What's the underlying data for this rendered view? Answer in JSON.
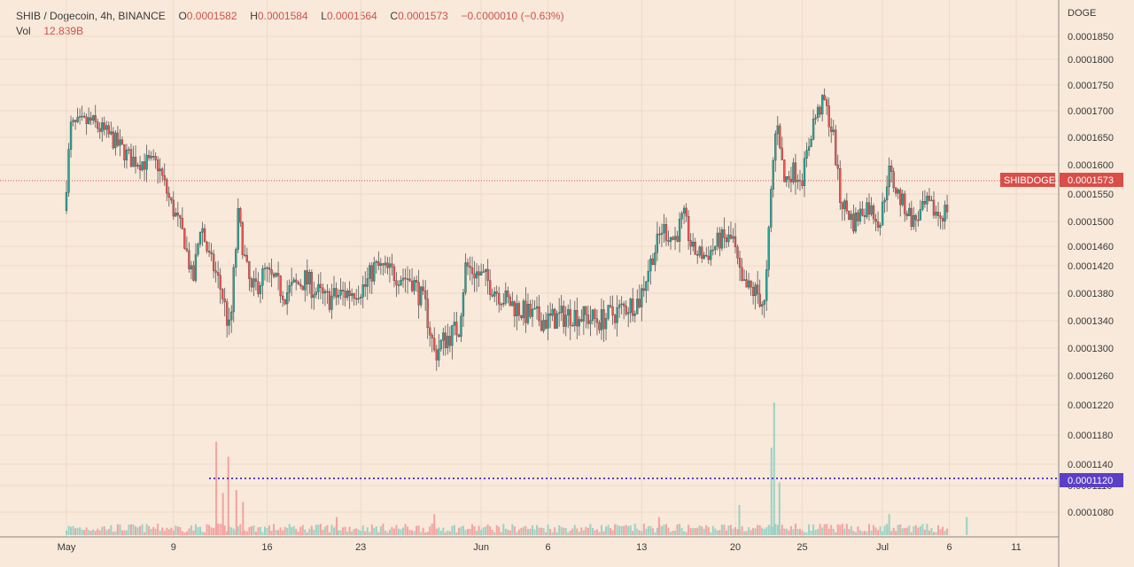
{
  "legend": {
    "symbol_line": "SHIB / Dogecoin, 4h, BINANCE",
    "o_key": "O",
    "o_val": "0.0001582",
    "h_key": "H",
    "h_val": "0.0001584",
    "l_key": "L",
    "l_val": "0.0001564",
    "c_key": "C",
    "c_val": "0.0001573",
    "change": "−0.0000010 (−0.63%)",
    "vol_key": "Vol",
    "vol_val": "12.839B"
  },
  "axis": {
    "currency": "DOGE"
  },
  "price_tags": {
    "last_symbol": "SHIBDOGE",
    "last_price": "0.0001573",
    "support_price": "0.0001120"
  },
  "colors": {
    "background": "#f8e9da",
    "up": "#26a69a",
    "down": "#ef5350",
    "wick": "#555555",
    "last_price_line": "#e0504b",
    "support_line": "#5b3fc9"
  },
  "chart_data": {
    "type": "candlestick",
    "interval": "4h",
    "y_ticks": [
      0.000108,
      0.000111,
      0.000114,
      0.000118,
      0.000122,
      0.000126,
      0.00013,
      0.000134,
      0.000138,
      0.000142,
      0.000146,
      0.00015,
      0.000155,
      0.00016,
      0.000165,
      0.00017,
      0.000175,
      0.00018,
      0.000185
    ],
    "y_tick_labels": [
      "0.0001080",
      "0.0001110",
      "0.0001140",
      "0.0001180",
      "0.0001220",
      "0.0001260",
      "0.0001300",
      "0.0001340",
      "0.0001380",
      "0.0001420",
      "0.0001460",
      "0.0001500",
      "0.0001550",
      "0.0001600",
      "0.0001650",
      "0.0001700",
      "0.0001750",
      "0.0001800",
      "0.0001850"
    ],
    "x_ticks": [
      {
        "label": "May",
        "day": 1
      },
      {
        "label": "9",
        "day": 9
      },
      {
        "label": "16",
        "day": 16
      },
      {
        "label": "23",
        "day": 23
      },
      {
        "label": "Jun",
        "day": 32
      },
      {
        "label": "6",
        "day": 37
      },
      {
        "label": "13",
        "day": 44
      },
      {
        "label": "20",
        "day": 51
      },
      {
        "label": "25",
        "day": 56
      },
      {
        "label": "Jul",
        "day": 62
      },
      {
        "label": "6",
        "day": 67
      },
      {
        "label": "11",
        "day": 72
      }
    ],
    "last_price": 0.0001573,
    "support_level": 0.000112,
    "price_anchors": [
      [
        0,
        0.000152
      ],
      [
        0.5,
        0.000167
      ],
      [
        2,
        0.000168
      ],
      [
        3.5,
        0.000165
      ],
      [
        5,
        0.000161
      ],
      [
        7,
        0.00016
      ],
      [
        8,
        0.000153
      ],
      [
        9,
        0.000147
      ],
      [
        9.6,
        0.000139
      ],
      [
        10.2,
        0.00015
      ],
      [
        10.8,
        0.000144
      ],
      [
        11.8,
        0.000138
      ],
      [
        12.4,
        0.000132
      ],
      [
        13,
        0.000151
      ],
      [
        13.6,
        0.000142
      ],
      [
        14,
        0.000138
      ],
      [
        15,
        0.000141
      ],
      [
        16.5,
        0.000138
      ],
      [
        18,
        0.00014
      ],
      [
        19.5,
        0.000137
      ],
      [
        21,
        0.000138
      ],
      [
        22.5,
        0.000139
      ],
      [
        23.2,
        0.000142
      ],
      [
        24.5,
        0.000141
      ],
      [
        26,
        0.00014
      ],
      [
        27,
        0.000136
      ],
      [
        27.7,
        0.000129
      ],
      [
        28.3,
        0.000131
      ],
      [
        29.5,
        0.000133
      ],
      [
        30,
        0.000142
      ],
      [
        31.5,
        0.00014
      ],
      [
        33,
        0.000137
      ],
      [
        34.5,
        0.000135
      ],
      [
        36,
        0.000134
      ],
      [
        38,
        0.000135
      ],
      [
        40,
        0.000134
      ],
      [
        42,
        0.000136
      ],
      [
        43,
        0.000137
      ],
      [
        44,
        0.000144
      ],
      [
        44.7,
        0.000149
      ],
      [
        45.6,
        0.000147
      ],
      [
        46.3,
        0.000151
      ],
      [
        47,
        0.000145
      ],
      [
        48,
        0.000144
      ],
      [
        49,
        0.000147
      ],
      [
        50,
        0.000147
      ],
      [
        50.6,
        0.000139
      ],
      [
        51.8,
        0.000138
      ],
      [
        52.4,
        0.000136
      ],
      [
        52.9,
        0.000158
      ],
      [
        53.3,
        0.000169
      ],
      [
        53.8,
        0.000157
      ],
      [
        54.4,
        0.000159
      ],
      [
        55.2,
        0.000158
      ],
      [
        56,
        0.000168
      ],
      [
        56.8,
        0.000172
      ],
      [
        57.5,
        0.000165
      ],
      [
        58,
        0.000154
      ],
      [
        59,
        0.00015
      ],
      [
        60,
        0.000153
      ],
      [
        61,
        0.00015
      ],
      [
        61.6,
        0.000159
      ],
      [
        62.5,
        0.000154
      ],
      [
        63.5,
        0.00015
      ],
      [
        64.5,
        0.000153
      ],
      [
        65.5,
        0.000151
      ],
      [
        66.5,
        0.000154
      ],
      [
        67.5,
        0.000153
      ],
      [
        68.3,
        0.000154
      ],
      [
        68.8,
        0.00016
      ],
      [
        69.1,
        0.0001573
      ]
    ],
    "volume_spikes": [
      [
        11.2,
        0.62
      ],
      [
        11.7,
        0.28
      ],
      [
        12.1,
        0.52
      ],
      [
        12.7,
        0.3
      ],
      [
        13.2,
        0.22
      ],
      [
        52.9,
        0.88
      ],
      [
        52.7,
        0.58
      ],
      [
        53.3,
        0.35
      ],
      [
        20.2,
        0.12
      ],
      [
        27.5,
        0.14
      ],
      [
        44.3,
        0.12
      ],
      [
        50.3,
        0.2
      ],
      [
        61.5,
        0.14
      ],
      [
        67.3,
        0.12
      ]
    ]
  }
}
